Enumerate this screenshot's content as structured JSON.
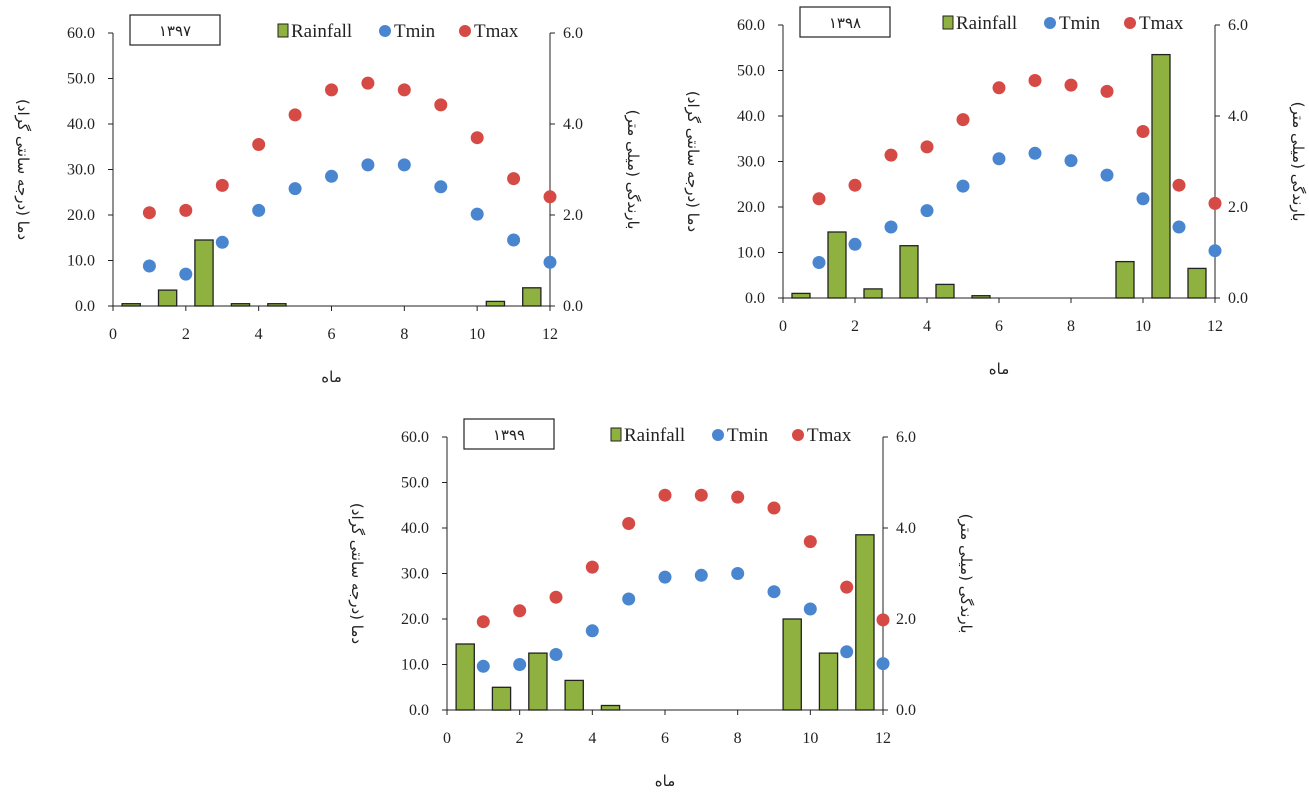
{
  "colors": {
    "rainfall": "#8fb140",
    "rainfall_stroke": "#222222",
    "tmin": "#4a86d0",
    "tmax": "#d64a45",
    "axis": "#222222"
  },
  "chart_data": [
    {
      "type": "bar+scatter",
      "year_label": "۱۳۹۷",
      "xlabel": "ماه",
      "ylabel": "دما (درجه سانتی گراد)",
      "y2label": "بارندگی (میلی متر)",
      "xlim": [
        0,
        12
      ],
      "ylim": [
        0,
        60
      ],
      "y2lim": [
        0,
        6
      ],
      "x_ticks": [
        "0",
        "2",
        "4",
        "6",
        "8",
        "10",
        "12"
      ],
      "y_ticks": [
        "0.0",
        "10.0",
        "20.0",
        "30.0",
        "40.0",
        "50.0",
        "60.0"
      ],
      "y2_ticks": [
        "0.0",
        "2.0",
        "4.0",
        "6.0"
      ],
      "legend": [
        "Rainfall",
        "Tmin",
        "Tmax"
      ],
      "legend_position": "top-right",
      "rainfall": {
        "x": [
          0.5,
          1.5,
          2.5,
          3.5,
          4.5,
          5.5,
          6.5,
          7.5,
          8.5,
          9.5,
          10.5,
          11.5
        ],
        "values": [
          0.05,
          0.35,
          1.45,
          0.05,
          0.05,
          0,
          0,
          0,
          0,
          0,
          0.1,
          0.4
        ]
      },
      "tmin": {
        "x": [
          1,
          2,
          3,
          4,
          5,
          6,
          7,
          8,
          9,
          10,
          11,
          12
        ],
        "values": [
          8.8,
          7.0,
          14.0,
          21.0,
          25.8,
          28.5,
          31.0,
          31.0,
          26.2,
          20.2,
          14.5,
          9.6
        ]
      },
      "tmax": {
        "x": [
          1,
          2,
          3,
          4,
          5,
          6,
          7,
          8,
          9,
          10,
          11,
          12
        ],
        "values": [
          20.5,
          21.0,
          26.5,
          35.5,
          42.0,
          47.5,
          49.0,
          47.5,
          44.2,
          37.0,
          28.0,
          24.0
        ]
      }
    },
    {
      "type": "bar+scatter",
      "year_label": "۱۳۹۸",
      "xlabel": "ماه",
      "ylabel": "دما (درجه سانتی گراد)",
      "y2label": "بارندگی (میلی متر)",
      "xlim": [
        0,
        12
      ],
      "ylim": [
        0,
        60
      ],
      "y2lim": [
        0,
        6
      ],
      "x_ticks": [
        "0",
        "2",
        "4",
        "6",
        "8",
        "10",
        "12"
      ],
      "y_ticks": [
        "0.0",
        "10.0",
        "20.0",
        "30.0",
        "40.0",
        "50.0",
        "60.0"
      ],
      "y2_ticks": [
        "0.0",
        "2.0",
        "4.0",
        "6.0"
      ],
      "legend": [
        "Rainfall",
        "Tmin",
        "Tmax"
      ],
      "legend_position": "top-right",
      "rainfall": {
        "x": [
          0.5,
          1.5,
          2.5,
          3.5,
          4.5,
          5.5,
          6.5,
          7.5,
          8.5,
          9.5,
          10.5,
          11.5
        ],
        "values": [
          0.1,
          1.45,
          0.2,
          1.15,
          0.3,
          0.05,
          0,
          0,
          0,
          0.8,
          5.35,
          0.65
        ]
      },
      "tmin": {
        "x": [
          1,
          2,
          3,
          4,
          5,
          6,
          7,
          8,
          9,
          10,
          11,
          12
        ],
        "values": [
          7.8,
          11.8,
          15.6,
          19.2,
          24.6,
          30.6,
          31.8,
          30.2,
          27.0,
          21.8,
          15.6,
          10.4
        ]
      },
      "tmax": {
        "x": [
          1,
          2,
          3,
          4,
          5,
          6,
          7,
          8,
          9,
          10,
          11,
          12
        ],
        "values": [
          21.8,
          24.8,
          31.4,
          33.2,
          39.2,
          46.2,
          47.8,
          46.8,
          45.4,
          36.6,
          24.8,
          20.8
        ]
      }
    },
    {
      "type": "bar+scatter",
      "year_label": "۱۳۹۹",
      "xlabel": "ماه",
      "ylabel": "دما (درجه سانتی گراد)",
      "y2label": "بارندگی (میلی متر)",
      "xlim": [
        0,
        12
      ],
      "ylim": [
        0,
        60
      ],
      "y2lim": [
        0,
        6
      ],
      "x_ticks": [
        "0",
        "2",
        "4",
        "6",
        "8",
        "10",
        "12"
      ],
      "y_ticks": [
        "0.0",
        "10.0",
        "20.0",
        "30.0",
        "40.0",
        "50.0",
        "60.0"
      ],
      "y2_ticks": [
        "0.0",
        "2.0",
        "4.0",
        "6.0"
      ],
      "legend": [
        "Rainfall",
        "Tmin",
        "Tmax"
      ],
      "legend_position": "top-right",
      "rainfall": {
        "x": [
          0.5,
          1.5,
          2.5,
          3.5,
          4.5,
          5.5,
          6.5,
          7.5,
          8.5,
          9.5,
          10.5,
          11.5
        ],
        "values": [
          1.45,
          0.5,
          1.25,
          0.65,
          0.1,
          0,
          0,
          0,
          0,
          2.0,
          1.25,
          3.85
        ]
      },
      "tmin": {
        "x": [
          1,
          2,
          3,
          4,
          5,
          6,
          7,
          8,
          9,
          10,
          11,
          12
        ],
        "values": [
          9.6,
          10.0,
          12.2,
          17.4,
          24.4,
          29.2,
          29.6,
          30.0,
          26.0,
          22.2,
          12.8,
          10.2
        ]
      },
      "tmax": {
        "x": [
          1,
          2,
          3,
          4,
          5,
          6,
          7,
          8,
          9,
          10,
          11,
          12
        ],
        "values": [
          19.4,
          21.8,
          24.8,
          31.4,
          41.0,
          47.2,
          47.2,
          46.8,
          44.4,
          37.0,
          27.0,
          19.8
        ]
      }
    }
  ]
}
